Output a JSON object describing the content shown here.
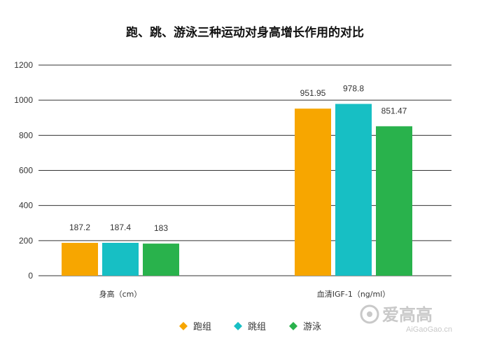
{
  "chart_data": {
    "type": "bar",
    "title": "跑、跳、游泳三种运动对身高增长作用的对比",
    "categories": [
      "身高（cm）",
      "血清IGF-1（ng/ml）"
    ],
    "series": [
      {
        "name": "跑组",
        "values": [
          187.2,
          951.95
        ],
        "labels": [
          "187.2",
          "951.95"
        ],
        "color": "#F7A600"
      },
      {
        "name": "跳组",
        "values": [
          187.4,
          978.8
        ],
        "labels": [
          "187.4",
          "978.8"
        ],
        "color": "#17BFC4"
      },
      {
        "name": "游泳",
        "values": [
          183,
          851.47
        ],
        "labels": [
          "183",
          "851.47"
        ],
        "color": "#29B24C"
      }
    ],
    "ylim": [
      0,
      1200
    ],
    "yticks": [
      "0",
      "200",
      "400",
      "600",
      "800",
      "1000",
      "1200"
    ],
    "grid": true,
    "legend_position": "bottom",
    "xlabel": "",
    "ylabel": ""
  },
  "watermark": {
    "text": "爱高高",
    "subtext": "AiGaoGao.cn"
  }
}
